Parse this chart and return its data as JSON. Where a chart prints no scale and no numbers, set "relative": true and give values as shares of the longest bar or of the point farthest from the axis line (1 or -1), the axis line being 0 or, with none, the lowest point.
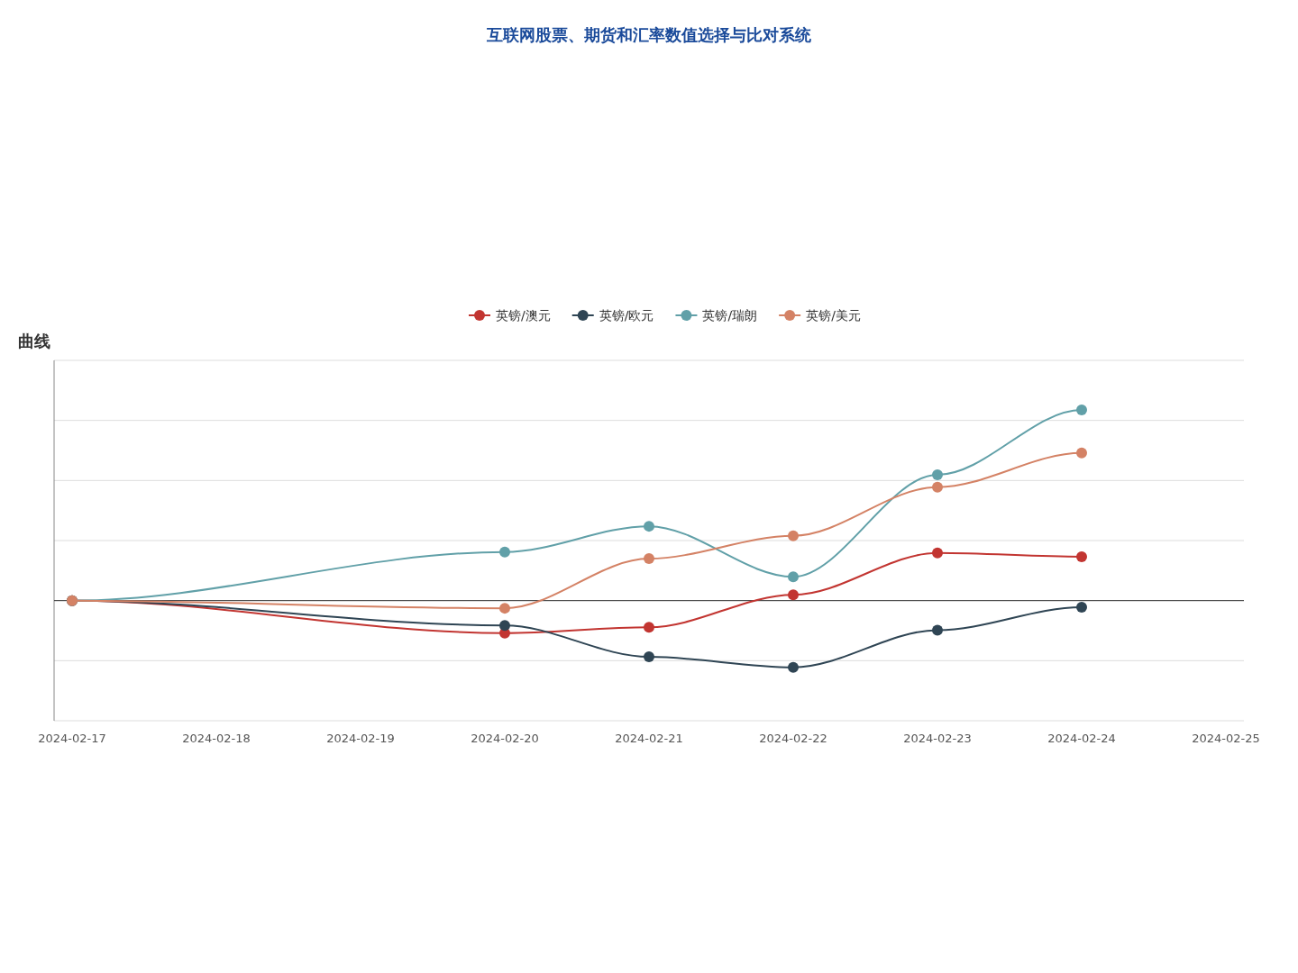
{
  "chart_data": {
    "type": "line",
    "title": "互联网股票、期货和汇率数值选择与比对系统",
    "subtitle": "曲线",
    "categories": [
      "2024-02-17",
      "2024-02-18",
      "2024-02-19",
      "2024-02-20",
      "2024-02-21",
      "2024-02-22",
      "2024-02-23",
      "2024-02-24",
      "2024-02-25"
    ],
    "relative": true,
    "grid": "y",
    "legend": "top",
    "marker": "circle",
    "line_style": "solid",
    "series": [
      {
        "name": "英镑/澳元",
        "color": "#c23531",
        "values": [
          0,
          null,
          null,
          -0.17,
          -0.14,
          0.03,
          0.25,
          0.23,
          null
        ]
      },
      {
        "name": "英镑/欧元",
        "color": "#2f4554",
        "values": [
          0,
          null,
          null,
          -0.13,
          -0.295,
          -0.35,
          -0.155,
          -0.035,
          null
        ]
      },
      {
        "name": "英镑/瑞朗",
        "color": "#61a0a8",
        "values": [
          0,
          null,
          null,
          0.255,
          0.39,
          0.125,
          0.66,
          1,
          null
        ]
      },
      {
        "name": "英镑/美元",
        "color": "#d48265",
        "values": [
          0,
          null,
          null,
          -0.04,
          0.22,
          0.34,
          0.595,
          0.775,
          null
        ]
      }
    ]
  }
}
